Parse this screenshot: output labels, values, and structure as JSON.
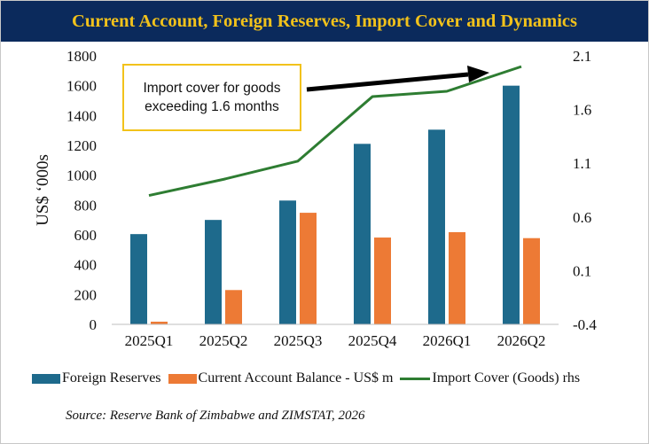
{
  "title": "Current Account, Foreign Reserves, Import Cover and Dynamics",
  "callout": {
    "line1": "Import cover for goods",
    "line2": "exceeding 1.6 months"
  },
  "source": "Source: Reserve Bank of Zimbabwe and ZIMSTAT, 2026",
  "colors": {
    "title_bg": "#0b2a5c",
    "title_text": "#f2c21b",
    "foreign_reserves": "#1e6a8c",
    "current_account": "#ed7a35",
    "import_cover": "#2e7d32",
    "callout_border": "#f2c21b"
  },
  "legend": [
    {
      "label": "Foreign Reserves",
      "kind": "box",
      "color": "#1e6a8c"
    },
    {
      "label": "Current Account Balance - US$ m",
      "kind": "box",
      "color": "#ed7a35"
    },
    {
      "label": "Import Cover (Goods) rhs",
      "kind": "line",
      "color": "#2e7d32"
    }
  ],
  "chart_data": {
    "type": "bar",
    "categories": [
      "2025Q1",
      "2025Q2",
      "2025Q3",
      "2025Q4",
      "2026Q1",
      "2026Q2"
    ],
    "ylabel": "US$ ‘000s",
    "ylim": [
      0,
      1800
    ],
    "yticks": [
      "0",
      "200",
      "400",
      "600",
      "800",
      "1000",
      "1200",
      "1400",
      "1600",
      "1800"
    ],
    "y2lim": [
      -0.4,
      2.1
    ],
    "y2ticks": [
      "-0.4",
      "0.1",
      "0.6",
      "1.1",
      "1.6",
      "2.1"
    ],
    "grid": false,
    "legend_position": "bottom",
    "series": [
      {
        "name": "Foreign Reserves",
        "type": "bar",
        "axis": "left",
        "values": [
          605,
          700,
          830,
          1210,
          1305,
          1600
        ]
      },
      {
        "name": "Current Account Balance - US$ m",
        "type": "bar",
        "axis": "left",
        "values": [
          18,
          230,
          748,
          582,
          618,
          578
        ]
      },
      {
        "name": "Import Cover (Goods) rhs",
        "type": "line",
        "axis": "right",
        "values": [
          0.8,
          0.95,
          1.12,
          1.72,
          1.77,
          2.0
        ]
      }
    ]
  }
}
